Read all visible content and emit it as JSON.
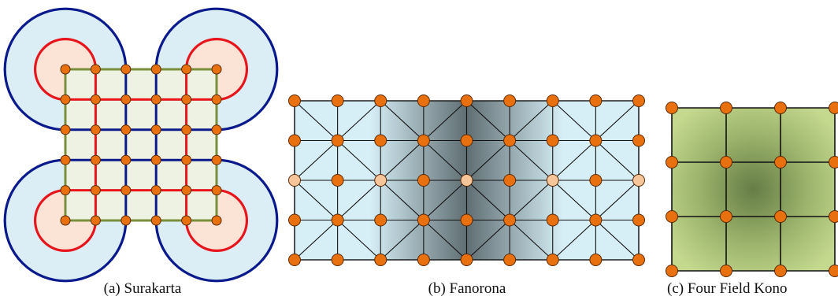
{
  "panels": [
    {
      "id": "a",
      "caption": "(a)  Surakarta",
      "grid_points": [
        6,
        6
      ]
    },
    {
      "id": "b",
      "caption": "(b)  Fanorona",
      "grid_points": [
        9,
        5
      ]
    },
    {
      "id": "c",
      "caption": "(c)  Four Field Kono",
      "grid_points": [
        4,
        4
      ]
    }
  ],
  "colors": {
    "outer_loop": "#0a1a8c",
    "inner_loop": "#e8141c",
    "outer_fill": "#dbeef5",
    "inner_fill": "#fbe4d6",
    "grid_frame": "#7a8f3c",
    "board_fill": "#eef2e2",
    "node_fill": "#e8700f",
    "node_light_fill": "#f7c59a",
    "node_stroke": "#5a2a06",
    "fanorona_light": "#d6eef6",
    "fanorona_dark": "#5f6e73",
    "kono_light": "#c4d98e",
    "kono_dark": "#667d46"
  }
}
